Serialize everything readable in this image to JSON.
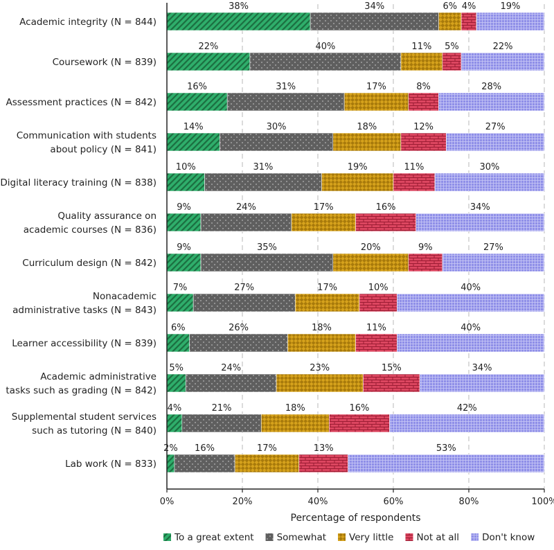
{
  "chart_data": {
    "type": "bar",
    "orientation": "horizontal-stacked",
    "title": "",
    "xlabel": "Percentage of respondents",
    "ylabel": "",
    "xlim": [
      0,
      100
    ],
    "x_ticks": [
      "0%",
      "20%",
      "40%",
      "60%",
      "80%",
      "100%"
    ],
    "grid": "vertical-dashed",
    "legend_position": "bottom",
    "categories": [
      [
        "Academic integrity (N = 844)"
      ],
      [
        "Coursework (N = 839)"
      ],
      [
        "Assessment practices (N = 842)"
      ],
      [
        "Communication with students",
        "about policy (N = 841)"
      ],
      [
        "Digital literacy training (N = 838)"
      ],
      [
        "Quality assurance on",
        "academic courses (N = 836)"
      ],
      [
        "Curriculum design (N = 842)"
      ],
      [
        "Nonacademic",
        "administrative tasks (N = 843)"
      ],
      [
        "Learner accessibility (N = 839)"
      ],
      [
        "Academic administrative",
        "tasks such as grading (N = 842)"
      ],
      [
        "Supplemental student services",
        "such as tutoring (N = 840)"
      ],
      [
        "Lab work (N = 833)"
      ]
    ],
    "series": [
      {
        "name": "To a great extent",
        "color": "#2fae6b",
        "pattern": "diagonal",
        "values": [
          38,
          22,
          16,
          14,
          10,
          9,
          9,
          7,
          6,
          5,
          4,
          2
        ]
      },
      {
        "name": "Somewhat",
        "color": "#5f5f5f",
        "pattern": "dots",
        "values": [
          34,
          40,
          31,
          30,
          31,
          24,
          35,
          27,
          26,
          24,
          21,
          16
        ]
      },
      {
        "name": "Very little",
        "color": "#d4a017",
        "pattern": "checker",
        "values": [
          6,
          11,
          17,
          18,
          19,
          17,
          20,
          17,
          18,
          23,
          18,
          17
        ]
      },
      {
        "name": "Not at all",
        "color": "#d9415b",
        "pattern": "brick",
        "values": [
          4,
          5,
          8,
          12,
          11,
          16,
          9,
          10,
          11,
          15,
          16,
          13
        ]
      },
      {
        "name": "Don't know",
        "color": "#8e8ee6",
        "pattern": "grid",
        "values": [
          19,
          22,
          28,
          27,
          30,
          34,
          27,
          40,
          40,
          34,
          42,
          53
        ]
      }
    ]
  }
}
